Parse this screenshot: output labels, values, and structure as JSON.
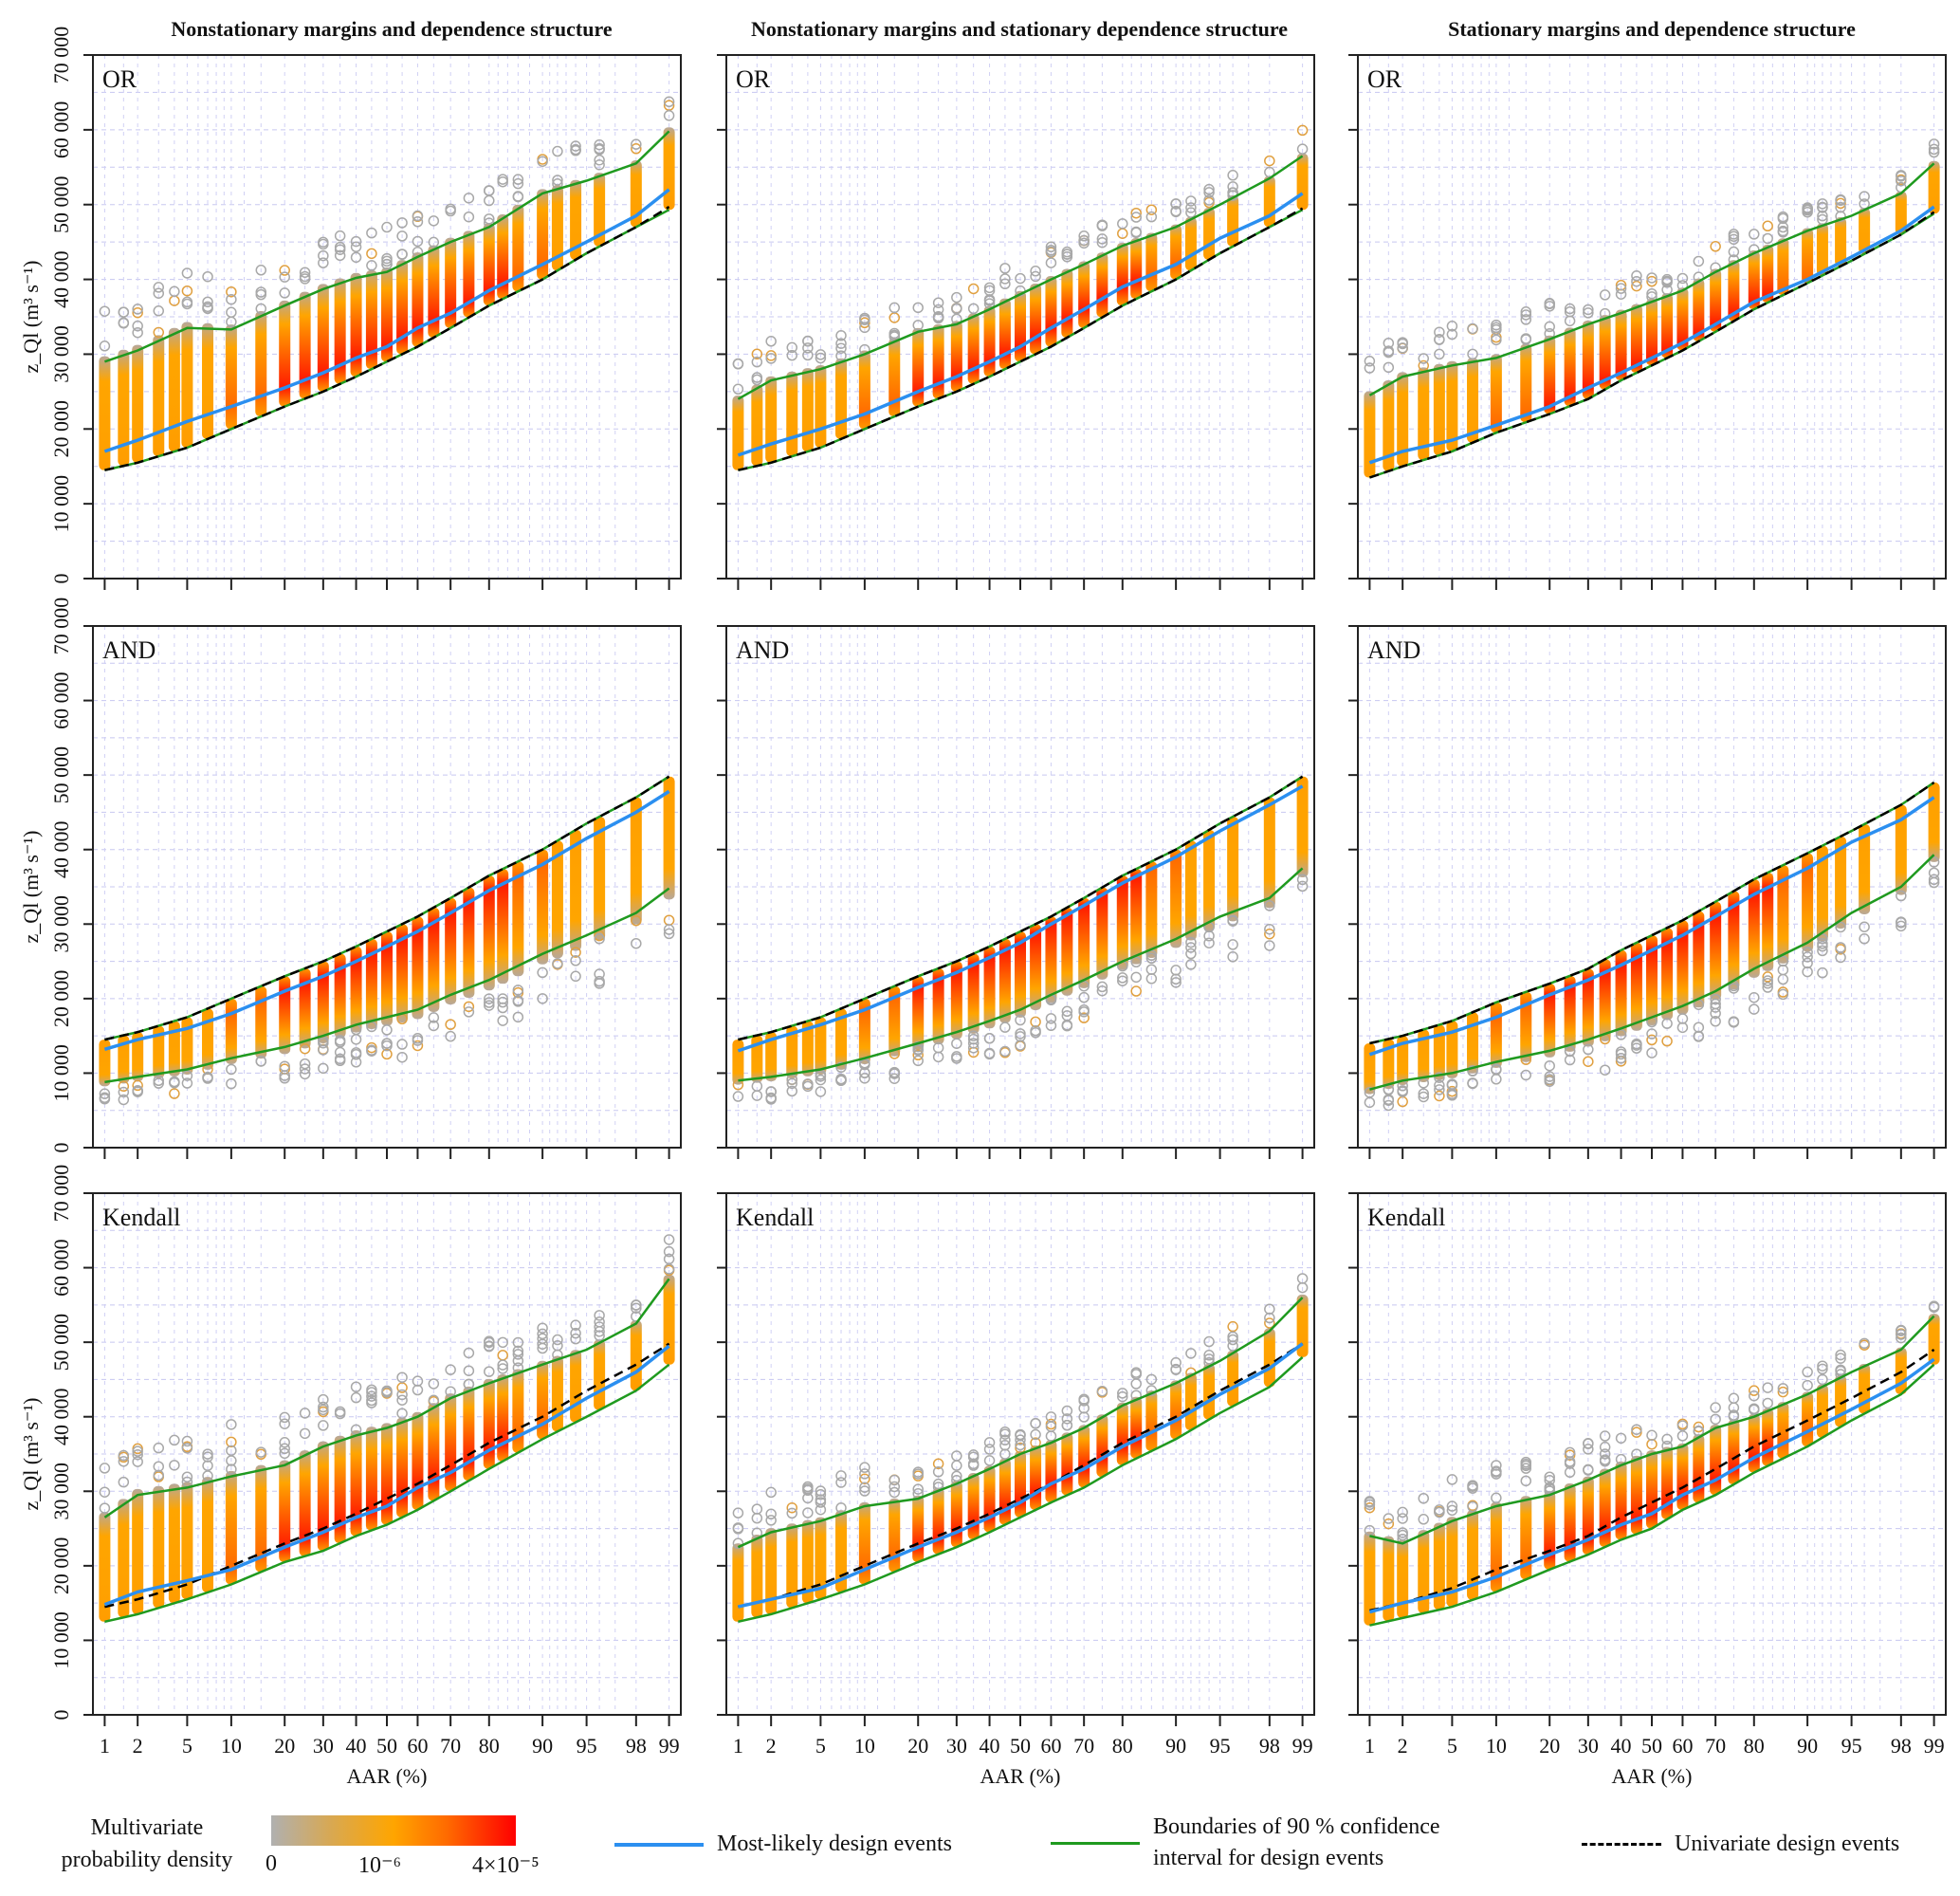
{
  "figure": {
    "column_titles": [
      "Nonstationary margins and dependence structure",
      "Nonstationary margins and stationary dependence structure",
      "Stationary margins and dependence structure"
    ],
    "row_labels": [
      "OR",
      "AND",
      "Kendall"
    ],
    "y_axis_label": "z_Ql (m³ s⁻¹)",
    "x_axis_label": "AAR (%)",
    "y_ticks": [
      "0",
      "10000",
      "20000",
      "30000",
      "40000",
      "50000",
      "60000",
      "70000"
    ],
    "x_ticks": [
      "1",
      "2",
      "5",
      "10",
      "20",
      "30",
      "40",
      "50",
      "60",
      "70",
      "80",
      "90",
      "95",
      "98",
      "99"
    ]
  },
  "legend": {
    "colorbar_title": "Multivariate probability density",
    "colorbar_title_line1": "Multivariate",
    "colorbar_title_line2": "probability density",
    "colorbar_ticks": [
      "0",
      "10⁻⁶",
      "4×10⁻⁵"
    ],
    "most_likely": "Most-likely design events",
    "ci_line1": "Boundaries of 90 % confidence",
    "ci_line2": "interval for design events",
    "univariate": "Univariate design events",
    "colors": {
      "most_likely": "#2b8ff0",
      "ci": "#1f9a1f",
      "univariate": "#000000",
      "density_low": "#b0b0b0",
      "density_mid": "#ffa500",
      "density_high": "#ff0000"
    }
  },
  "chart_data": {
    "type": "scatter",
    "title": "",
    "xlabel": "AAR (%)",
    "ylabel": "z_Ql (m³ s⁻¹)",
    "ylim": [
      0,
      70000
    ],
    "x_scale": "probability",
    "grid": true,
    "legend_position": "bottom",
    "x": [
      1,
      2,
      5,
      10,
      20,
      30,
      40,
      50,
      60,
      70,
      80,
      90,
      95,
      98,
      99
    ],
    "panels": [
      {
        "row": "OR",
        "col": 0,
        "univariate": [
          14500,
          15500,
          17500,
          20000,
          23000,
          25000,
          27000,
          29000,
          31000,
          33500,
          36500,
          40000,
          43500,
          47000,
          49700
        ],
        "most_likely": [
          17000,
          18500,
          21000,
          23000,
          25500,
          27500,
          29500,
          31000,
          33500,
          35500,
          38500,
          42000,
          45000,
          48500,
          52000
        ],
        "ci_lower": [
          14500,
          15500,
          17500,
          20000,
          23000,
          25000,
          27000,
          29000,
          31000,
          33500,
          36500,
          40000,
          43500,
          47000,
          49300
        ],
        "ci_upper": [
          29000,
          30500,
          33500,
          33300,
          36500,
          38700,
          40200,
          41000,
          43000,
          45000,
          47000,
          51500,
          53200,
          55500,
          59800
        ]
      },
      {
        "row": "OR",
        "col": 1,
        "univariate": [
          14500,
          15500,
          17500,
          20000,
          23000,
          25000,
          27000,
          29000,
          31000,
          33500,
          36500,
          40000,
          43500,
          47000,
          49500
        ],
        "most_likely": [
          16500,
          18000,
          20000,
          22000,
          25000,
          27000,
          29000,
          31000,
          33500,
          36000,
          39000,
          42000,
          45500,
          48500,
          51500
        ],
        "ci_lower": [
          14500,
          15500,
          17500,
          20000,
          23000,
          25000,
          27000,
          29000,
          31000,
          33500,
          36500,
          40000,
          43500,
          47000,
          49300
        ],
        "ci_upper": [
          24000,
          26500,
          28000,
          30000,
          33000,
          34000,
          36000,
          38000,
          40000,
          42000,
          44500,
          47000,
          50000,
          53500,
          56500
        ]
      },
      {
        "row": "OR",
        "col": 2,
        "univariate": [
          13500,
          15000,
          17000,
          19500,
          22000,
          24000,
          26500,
          28500,
          30500,
          33000,
          36000,
          39500,
          42500,
          46000,
          49000
        ],
        "most_likely": [
          15500,
          17000,
          18500,
          20500,
          23000,
          25500,
          27500,
          29500,
          31500,
          34000,
          37000,
          40000,
          43000,
          46500,
          49700
        ],
        "ci_lower": [
          13500,
          15000,
          17000,
          19500,
          22000,
          24000,
          26500,
          28500,
          30500,
          33000,
          36000,
          39500,
          42500,
          46000,
          48800
        ],
        "ci_upper": [
          24500,
          27000,
          28500,
          29500,
          32000,
          34000,
          35500,
          37000,
          38500,
          41000,
          43500,
          46500,
          48500,
          51500,
          55500
        ]
      },
      {
        "row": "AND",
        "col": 0,
        "univariate": [
          14500,
          15500,
          17500,
          20000,
          23000,
          25000,
          27000,
          29000,
          31000,
          33500,
          36500,
          40000,
          43500,
          47000,
          49800
        ],
        "most_likely": [
          13200,
          14500,
          16000,
          18000,
          21000,
          23000,
          25000,
          27000,
          29000,
          31500,
          34500,
          38000,
          41500,
          45000,
          47800
        ],
        "ci_lower": [
          8800,
          9500,
          10500,
          12000,
          13500,
          15000,
          16500,
          17500,
          18500,
          20500,
          22500,
          26000,
          28500,
          31500,
          34800
        ],
        "ci_upper": [
          14500,
          15500,
          17500,
          20000,
          23000,
          25000,
          27000,
          29000,
          31000,
          33500,
          36500,
          40000,
          43500,
          47000,
          49800
        ]
      },
      {
        "row": "AND",
        "col": 1,
        "univariate": [
          14500,
          15500,
          17500,
          20000,
          23000,
          25000,
          27000,
          29000,
          31000,
          33500,
          36500,
          40000,
          43500,
          47000,
          49800
        ],
        "most_likely": [
          13000,
          14500,
          16500,
          18500,
          21500,
          23500,
          25500,
          27500,
          30000,
          32500,
          35500,
          39000,
          42500,
          46000,
          48500
        ],
        "ci_lower": [
          9000,
          9500,
          10500,
          12000,
          14000,
          15500,
          17000,
          18500,
          20500,
          22500,
          25000,
          28000,
          31000,
          33500,
          37500
        ],
        "ci_upper": [
          14500,
          15500,
          17500,
          20000,
          23000,
          25000,
          27000,
          29000,
          31000,
          33500,
          36500,
          40000,
          43500,
          47000,
          49800
        ]
      },
      {
        "row": "AND",
        "col": 2,
        "univariate": [
          14000,
          15000,
          17000,
          19500,
          22000,
          24000,
          26500,
          28500,
          30500,
          33000,
          36000,
          39500,
          42500,
          46000,
          49000
        ],
        "most_likely": [
          12500,
          14000,
          15500,
          17500,
          20500,
          22500,
          24500,
          26500,
          28500,
          31000,
          34000,
          37500,
          41000,
          44000,
          47000
        ],
        "ci_lower": [
          7800,
          9000,
          10000,
          11500,
          13000,
          14500,
          16000,
          17500,
          19000,
          21000,
          24000,
          27500,
          31500,
          35000,
          39300
        ],
        "ci_upper": [
          14000,
          15000,
          17000,
          19500,
          22000,
          24000,
          26500,
          28500,
          30500,
          33000,
          36000,
          39500,
          42500,
          46000,
          49000
        ]
      },
      {
        "row": "Kendall",
        "col": 0,
        "univariate": [
          14500,
          15500,
          17500,
          20000,
          23000,
          25000,
          27000,
          29000,
          31000,
          33500,
          36500,
          40000,
          43500,
          47000,
          49800
        ],
        "most_likely": [
          14800,
          16500,
          18000,
          19500,
          22500,
          24500,
          26500,
          28000,
          30500,
          32500,
          35500,
          39000,
          42500,
          46000,
          49500
        ],
        "ci_lower": [
          12500,
          13500,
          15500,
          17500,
          20500,
          22000,
          24000,
          25500,
          27500,
          30000,
          33000,
          37000,
          40000,
          43500,
          47000
        ],
        "ci_upper": [
          26500,
          29500,
          30500,
          32000,
          33500,
          36000,
          37500,
          38500,
          40000,
          42500,
          44500,
          47000,
          49000,
          52500,
          58500
        ]
      },
      {
        "row": "Kendall",
        "col": 1,
        "univariate": [
          14500,
          15500,
          17500,
          20000,
          23000,
          25000,
          27000,
          29000,
          31000,
          33500,
          36500,
          40000,
          43500,
          47000,
          49800
        ],
        "most_likely": [
          14500,
          15500,
          17000,
          19500,
          22500,
          24500,
          26500,
          28500,
          31000,
          33000,
          36000,
          39500,
          43000,
          46500,
          49800
        ],
        "ci_lower": [
          12500,
          13500,
          15500,
          17500,
          20500,
          22500,
          24500,
          26500,
          28500,
          30500,
          33500,
          37000,
          40500,
          44000,
          48000
        ],
        "ci_upper": [
          22500,
          24500,
          26000,
          28000,
          29000,
          31000,
          33000,
          35000,
          36500,
          38500,
          41500,
          44500,
          47500,
          51500,
          56000
        ]
      },
      {
        "row": "Kendall",
        "col": 2,
        "univariate": [
          14000,
          15000,
          17000,
          19500,
          22000,
          24000,
          26500,
          28500,
          30500,
          33000,
          36000,
          39500,
          42500,
          46000,
          49000
        ],
        "most_likely": [
          13800,
          15000,
          16500,
          18500,
          21500,
          23500,
          25500,
          27000,
          29500,
          31500,
          34500,
          38000,
          41000,
          44500,
          47700
        ],
        "ci_lower": [
          12000,
          13000,
          14500,
          16500,
          19500,
          21500,
          23500,
          25000,
          27500,
          29500,
          32500,
          36000,
          39500,
          43000,
          47000
        ],
        "ci_upper": [
          24000,
          23000,
          26000,
          28000,
          29500,
          31500,
          33500,
          35000,
          36000,
          38500,
          40000,
          43000,
          46000,
          49000,
          53500
        ]
      }
    ]
  }
}
